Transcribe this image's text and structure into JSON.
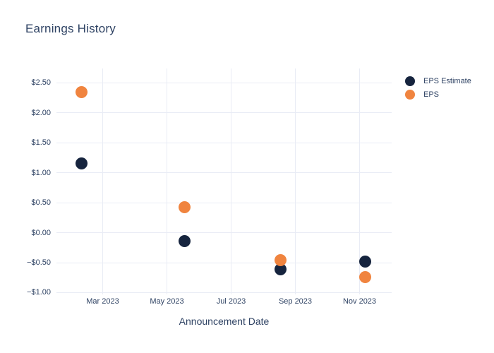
{
  "title": "Earnings History",
  "colors": {
    "eps_estimate": "#16243e",
    "eps": "#f0843f",
    "grid": "#e9ecf5",
    "text": "#2e4263",
    "background": "#ffffff"
  },
  "legend": {
    "items": [
      {
        "label": "EPS Estimate",
        "series_index": 0
      },
      {
        "label": "EPS",
        "series_index": 1
      }
    ],
    "position": "right-top"
  },
  "chart_data": {
    "type": "scatter",
    "title": "Earnings History",
    "xlabel": "Announcement Date",
    "ylabel": "",
    "grid": true,
    "legend_position": "right",
    "x_unit": "months since Jan 2023",
    "xlim": [
      0.56,
      11.0
    ],
    "ylim": [
      -1.03,
      2.74
    ],
    "x_ticks": [
      {
        "value": 2,
        "label": "Mar 2023"
      },
      {
        "value": 4,
        "label": "May 2023"
      },
      {
        "value": 6,
        "label": "Jul 2023"
      },
      {
        "value": 8,
        "label": "Sep 2023"
      },
      {
        "value": 10,
        "label": "Nov 2023"
      }
    ],
    "y_ticks": [
      {
        "value": 2.5,
        "label": "$2.50"
      },
      {
        "value": 2.0,
        "label": "$2.00"
      },
      {
        "value": 1.5,
        "label": "$1.50"
      },
      {
        "value": 1.0,
        "label": "$1.00"
      },
      {
        "value": 0.5,
        "label": "$0.50"
      },
      {
        "value": 0.0,
        "label": "$0.00"
      },
      {
        "value": -0.5,
        "label": "−$0.50"
      },
      {
        "value": -1.0,
        "label": "−$1.00"
      }
    ],
    "x": [
      1.33,
      4.54,
      7.53,
      10.17
    ],
    "series": [
      {
        "name": "EPS Estimate",
        "color": "#16243e",
        "values": [
          1.16,
          -0.14,
          -0.61,
          -0.48
        ]
      },
      {
        "name": "EPS",
        "color": "#f0843f",
        "values": [
          2.35,
          0.43,
          -0.46,
          -0.74
        ]
      }
    ],
    "marker_size_px": 17
  }
}
